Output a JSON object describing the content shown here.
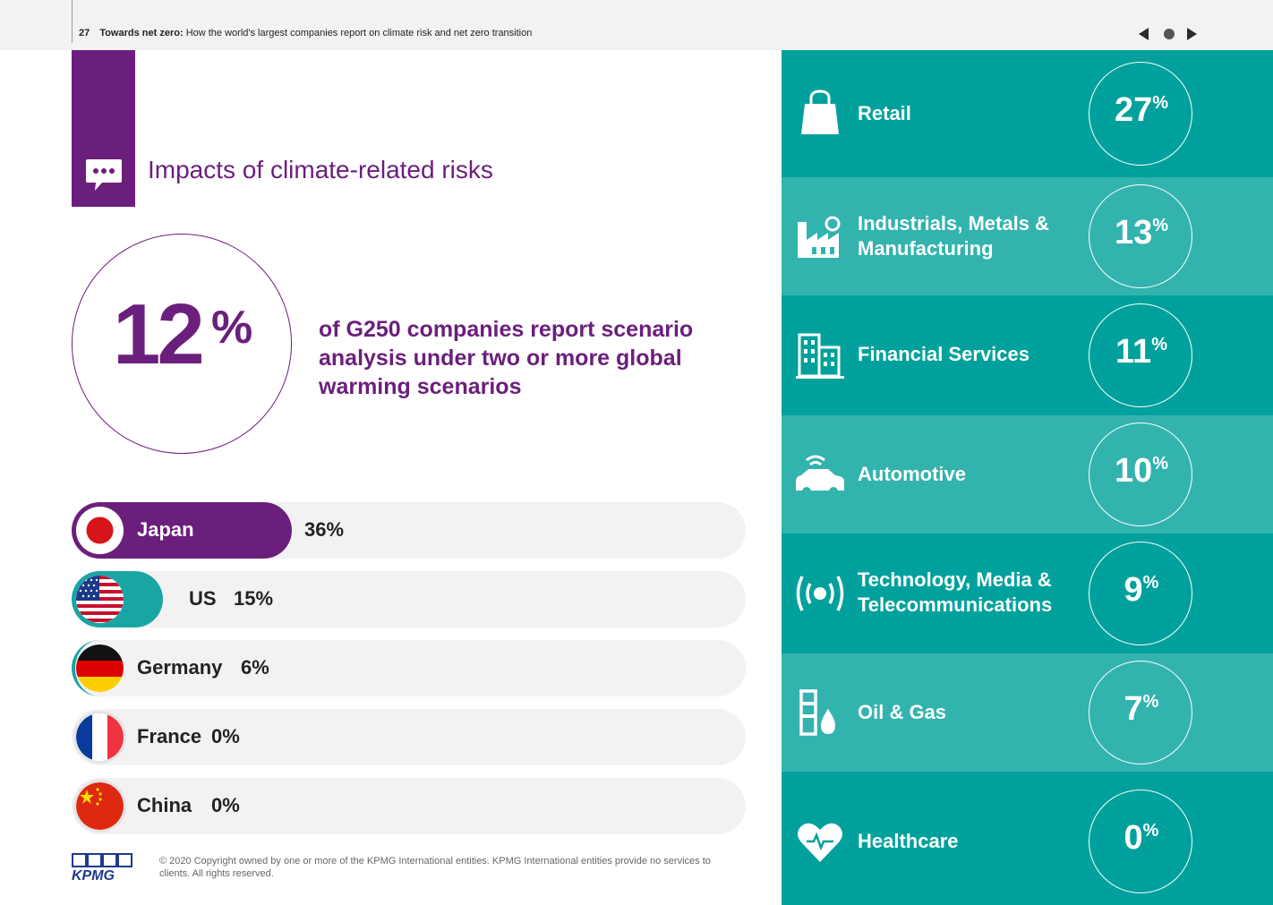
{
  "header": {
    "page_number": "27",
    "section": "Towards net zero:",
    "subtitle": "How the world's largest companies report on climate risk and net zero transition",
    "nav": [
      "previous-page",
      "home",
      "next-page"
    ]
  },
  "section_title": "Impacts of climate-related risks",
  "headline": {
    "value": "12",
    "unit": "%",
    "description": "of G250 companies report scenario analysis under two or more global warming scenarios"
  },
  "countries": [
    {
      "name": "Japan",
      "value": "36%",
      "fraction": 0.36,
      "color": "#6b1f7c",
      "label_color": "#ffffff"
    },
    {
      "name": "US",
      "value": "15%",
      "fraction": 0.15,
      "color": "#1aa5a5",
      "label_color": "#222222"
    },
    {
      "name": "Germany",
      "value": "6%",
      "fraction": 0.06,
      "color": "#1aa5a5",
      "label_color": "#222222"
    },
    {
      "name": "France",
      "value": "0%",
      "fraction": 0.0,
      "color": "#1aa5a5",
      "label_color": "#222222"
    },
    {
      "name": "China",
      "value": "0%",
      "fraction": 0.0,
      "color": "#1aa5a5",
      "label_color": "#222222"
    }
  ],
  "sectors": [
    {
      "label": "Retail",
      "value": "27",
      "unit": "%",
      "icon": "shopping-bag-icon",
      "bg": "#00a19c"
    },
    {
      "label": "Industrials, Metals & Manufacturing",
      "value": "13",
      "unit": "%",
      "icon": "factory-icon",
      "bg": "#33b3ae"
    },
    {
      "label": "Financial Services",
      "value": "11",
      "unit": "%",
      "icon": "office-building-icon",
      "bg": "#00a19c"
    },
    {
      "label": "Automotive",
      "value": "10",
      "unit": "%",
      "icon": "connected-car-icon",
      "bg": "#33b3ae"
    },
    {
      "label": "Technology, Media & Telecommunications",
      "value": "9",
      "unit": "%",
      "icon": "broadcast-icon",
      "bg": "#00a19c"
    },
    {
      "label": "Oil & Gas",
      "value": "7",
      "unit": "%",
      "icon": "oil-drop-icon",
      "bg": "#33b3ae"
    },
    {
      "label": "Healthcare",
      "value": "0",
      "unit": "%",
      "icon": "heart-icon",
      "bg": "#00a19c"
    }
  ],
  "footer": {
    "logo": "KPMG",
    "copyright": "© 2020 Copyright owned by one or more of the KPMG International entities. KPMG International entities provide no services to clients.  All rights reserved."
  },
  "colors": {
    "purple": "#6b1f7c",
    "teal": "#00a19c",
    "teal_light": "#33b3ae",
    "bar_bg": "#f2f2f2"
  }
}
